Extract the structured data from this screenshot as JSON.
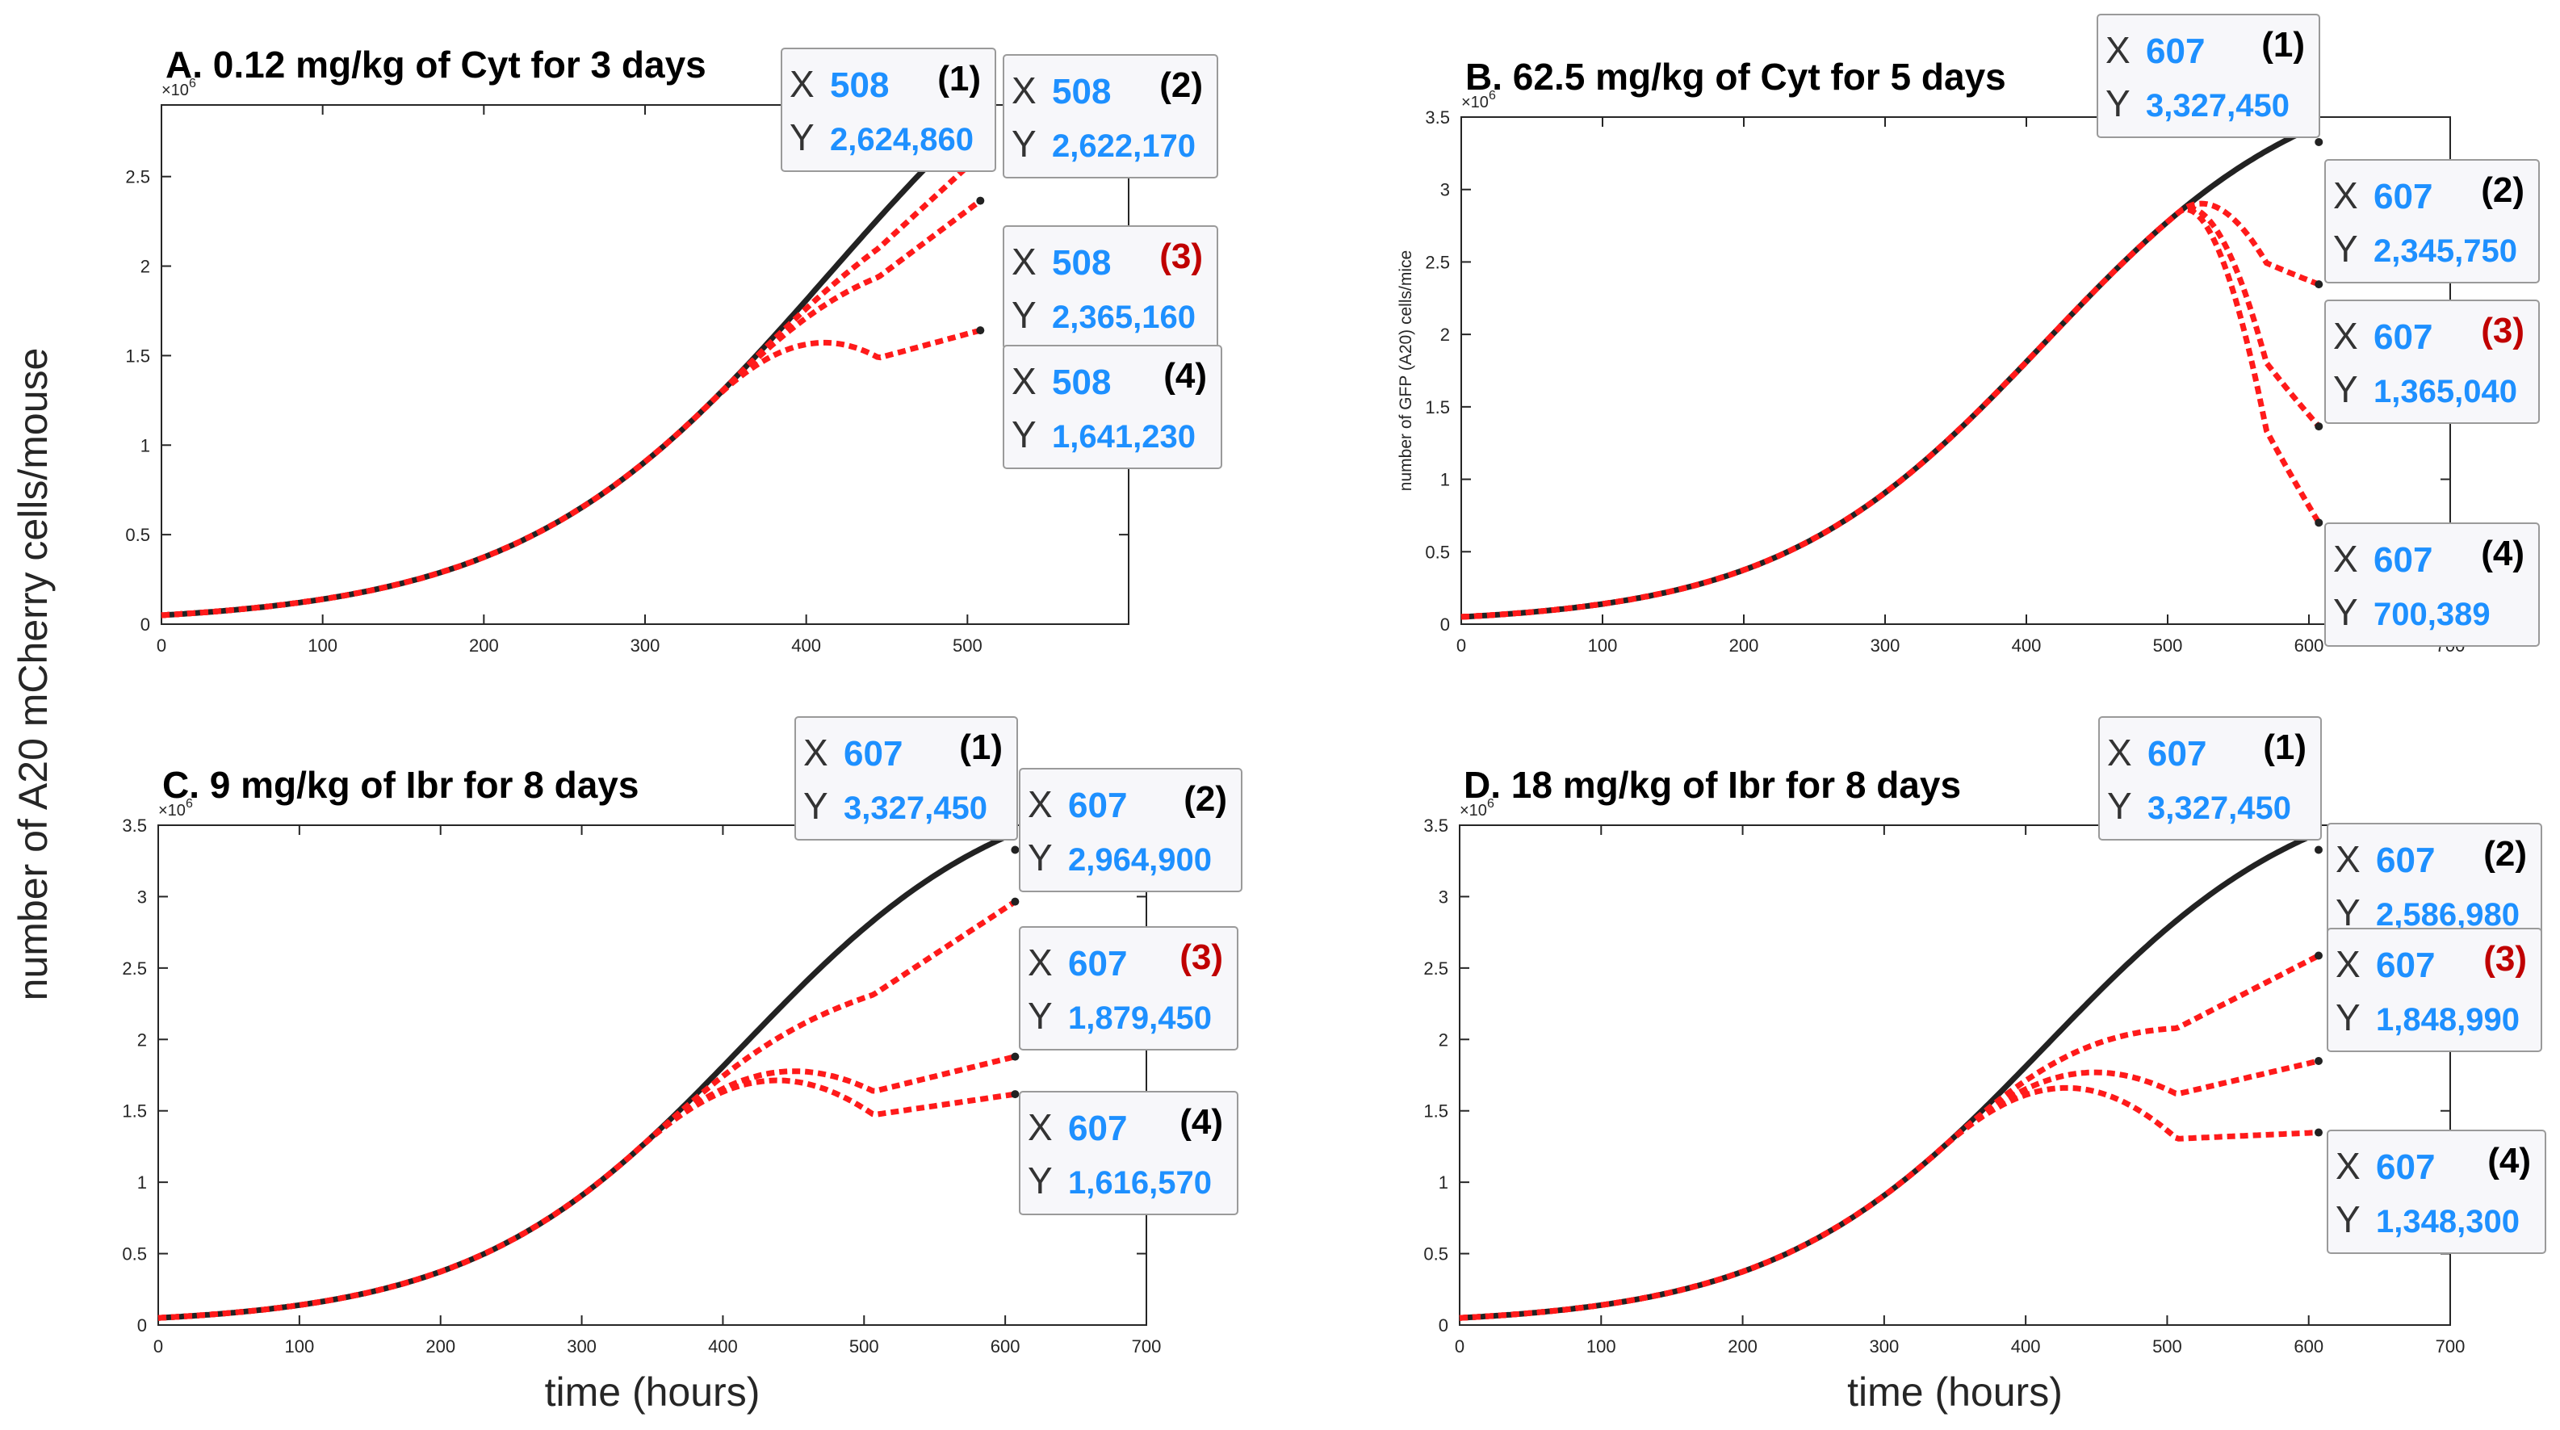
{
  "shared_labels": {
    "ylabel": "number of A20 mCherry cells/mouse",
    "xlabel": "time (hours)",
    "exponent": "×10^6"
  },
  "chart_data": [
    {
      "id": "A",
      "type": "line",
      "title": "A. 0.12 mg/kg of Cyt for 3 days",
      "xlim": [
        0,
        600
      ],
      "ylim": [
        0,
        2.9
      ],
      "xticks": [
        0,
        100,
        200,
        300,
        400,
        500
      ],
      "yticks": [
        0,
        0.5,
        1,
        1.5,
        2,
        2.5
      ],
      "y_multiplier": "×10^6",
      "ylabel": "",
      "treatment_start": 340,
      "curve": {
        "x0": 0,
        "y0": 0.05,
        "K": 3.9,
        "r": 0.0105
      },
      "series": [
        {
          "name": "",
          "style": "black",
          "x_end": 508,
          "y_end": 2624860
        },
        {
          "name": "",
          "style": "red",
          "x_end": 508,
          "y_end": 2622170
        },
        {
          "name": "",
          "style": "red",
          "x_end": 508,
          "y_end": 2365160
        },
        {
          "name": "",
          "style": "red",
          "x_end": 508,
          "y_end": 1641230
        }
      ],
      "datatips": [
        {
          "xkey": "X",
          "ykey": "Y",
          "x": "508",
          "y": "2,624,860",
          "index": "(1)"
        },
        {
          "xkey": "X",
          "ykey": "Y",
          "x": "508",
          "y": "2,622,170",
          "index": "(2)"
        },
        {
          "xkey": "X",
          "ykey": "Y",
          "x": "508",
          "y": "2,365,160",
          "index": "(3)"
        },
        {
          "xkey": "X",
          "ykey": "Y",
          "x": "508",
          "y": "1,641,230",
          "index": "(4)"
        }
      ]
    },
    {
      "id": "B",
      "type": "line",
      "title": "B. 62.5 mg/kg of Cyt for 5 days",
      "xlim": [
        0,
        700
      ],
      "ylim": [
        0,
        3.5
      ],
      "xticks": [
        0,
        100,
        200,
        300,
        400,
        500,
        600,
        700
      ],
      "yticks": [
        0,
        0.5,
        1,
        1.5,
        2,
        2.5,
        3,
        3.5
      ],
      "y_multiplier": "×10^6",
      "ylabel": "number of GFP (A20) cells/mice",
      "treatment_start": 508,
      "curve": {
        "x0": 0,
        "y0": 0.05,
        "K": 3.9,
        "r": 0.0105
      },
      "series": [
        {
          "name": "",
          "style": "black",
          "x_end": 607,
          "y_end": 3327450
        },
        {
          "name": "",
          "style": "red",
          "x_end": 607,
          "y_end": 2345750
        },
        {
          "name": "",
          "style": "red",
          "x_end": 607,
          "y_end": 1365040
        },
        {
          "name": "",
          "style": "red",
          "x_end": 607,
          "y_end": 700389
        }
      ],
      "datatips": [
        {
          "xkey": "X",
          "ykey": "Y",
          "x": "607",
          "y": "3,327,450",
          "index": "(1)"
        },
        {
          "xkey": "X",
          "ykey": "Y",
          "x": "607",
          "y": "2,345,750",
          "index": "(2)"
        },
        {
          "xkey": "X",
          "ykey": "Y",
          "x": "607",
          "y": "1,365,040",
          "index": "(3)"
        },
        {
          "xkey": "X",
          "ykey": "Y",
          "x": "607",
          "y": "700,389",
          "index": "(4)"
        }
      ]
    },
    {
      "id": "C",
      "type": "line",
      "title": "C. 9 mg/kg of Ibr for 8 days",
      "xlim": [
        0,
        700
      ],
      "ylim": [
        0,
        3.5
      ],
      "xticks": [
        0,
        100,
        200,
        300,
        400,
        500,
        600,
        700
      ],
      "yticks": [
        0,
        0.5,
        1,
        1.5,
        2,
        2.5,
        3,
        3.5
      ],
      "y_multiplier": "×10^6",
      "ylabel": "",
      "treatment_start": 340,
      "curve": {
        "x0": 0,
        "y0": 0.05,
        "K": 3.9,
        "r": 0.0105
      },
      "series": [
        {
          "name": "",
          "style": "black",
          "x_end": 607,
          "y_end": 3327450
        },
        {
          "name": "",
          "style": "red",
          "x_end": 607,
          "y_end": 2964900
        },
        {
          "name": "",
          "style": "red",
          "x_end": 607,
          "y_end": 1879450
        },
        {
          "name": "",
          "style": "red",
          "x_end": 607,
          "y_end": 1616570
        }
      ],
      "datatips": [
        {
          "xkey": "X",
          "ykey": "Y",
          "x": "607",
          "y": "3,327,450",
          "index": "(1)"
        },
        {
          "xkey": "X",
          "ykey": "Y",
          "x": "607",
          "y": "2,964,900",
          "index": "(2)"
        },
        {
          "xkey": "X",
          "ykey": "Y",
          "x": "607",
          "y": "1,879,450",
          "index": "(3)"
        },
        {
          "xkey": "X",
          "ykey": "Y",
          "x": "607",
          "y": "1,616,570",
          "index": "(4)"
        }
      ]
    },
    {
      "id": "D",
      "type": "line",
      "title": "D. 18 mg/kg of Ibr for 8 days",
      "xlim": [
        0,
        700
      ],
      "ylim": [
        0,
        3.5
      ],
      "xticks": [
        0,
        100,
        200,
        300,
        400,
        500,
        600,
        700
      ],
      "yticks": [
        0,
        0.5,
        1,
        1.5,
        2,
        2.5,
        3,
        3.5
      ],
      "y_multiplier": "×10^6",
      "ylabel": "",
      "treatment_start": 340,
      "curve": {
        "x0": 0,
        "y0": 0.05,
        "K": 3.9,
        "r": 0.0105
      },
      "series": [
        {
          "name": "",
          "style": "black",
          "x_end": 607,
          "y_end": 3327450
        },
        {
          "name": "",
          "style": "red",
          "x_end": 607,
          "y_end": 2586980
        },
        {
          "name": "",
          "style": "red",
          "x_end": 607,
          "y_end": 1848990
        },
        {
          "name": "",
          "style": "red",
          "x_end": 607,
          "y_end": 1348300
        }
      ],
      "datatips": [
        {
          "xkey": "X",
          "ykey": "Y",
          "x": "607",
          "y": "3,327,450",
          "index": "(1)"
        },
        {
          "xkey": "X",
          "ykey": "Y",
          "x": "607",
          "y": "2,586,980",
          "index": "(2)"
        },
        {
          "xkey": "X",
          "ykey": "Y",
          "x": "607",
          "y": "1,848,990",
          "index": "(3)"
        },
        {
          "xkey": "X",
          "ykey": "Y",
          "x": "607",
          "y": "1,348,300",
          "index": "(4)"
        }
      ]
    }
  ],
  "colors": {
    "control_line": "#222222",
    "treated_line": "#ff1a1a",
    "tip_value": "#1e90ff",
    "tip_index_highlight": "#c00000",
    "axis": "#262626"
  }
}
